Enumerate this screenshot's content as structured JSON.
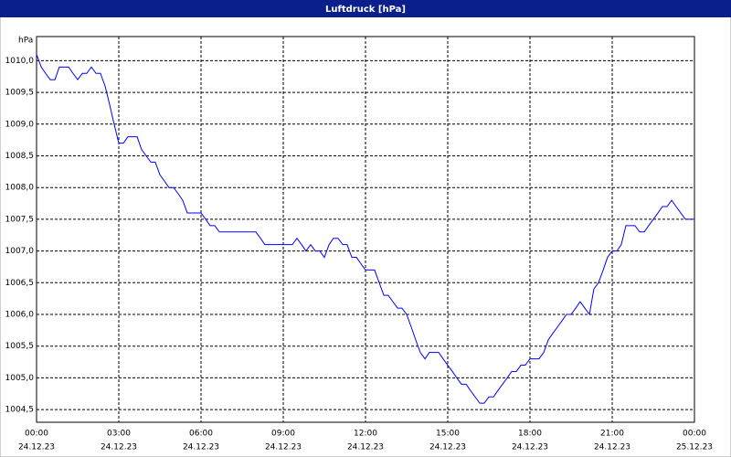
{
  "chart_data": {
    "type": "line",
    "title": "Luftdruck [hPa]",
    "y_label": "hPa",
    "x": [
      0,
      0.17,
      0.33,
      0.5,
      0.67,
      0.83,
      1,
      1.17,
      1.33,
      1.5,
      1.67,
      1.83,
      2,
      2.17,
      2.33,
      2.5,
      2.67,
      2.83,
      3,
      3.17,
      3.33,
      3.5,
      3.67,
      3.83,
      4,
      4.17,
      4.33,
      4.5,
      4.67,
      4.83,
      5,
      5.17,
      5.33,
      5.5,
      5.67,
      6,
      6.17,
      6.33,
      6.5,
      6.67,
      7,
      7.5,
      8,
      8.17,
      8.33,
      9,
      9.33,
      9.5,
      9.67,
      9.83,
      10,
      10.17,
      10.33,
      10.5,
      10.67,
      10.83,
      11,
      11.17,
      11.33,
      11.5,
      11.67,
      11.83,
      12,
      12.33,
      12.5,
      12.67,
      12.83,
      13,
      13.17,
      13.33,
      13.5,
      13.67,
      13.83,
      14,
      14.17,
      14.33,
      14.67,
      14.83,
      15,
      15.17,
      15.33,
      15.5,
      15.67,
      15.83,
      16,
      16.17,
      16.33,
      16.5,
      16.67,
      16.83,
      17,
      17.17,
      17.33,
      17.5,
      17.67,
      17.83,
      18,
      18.33,
      18.5,
      18.67,
      18.83,
      19,
      19.17,
      19.33,
      19.5,
      19.67,
      19.83,
      20,
      20.17,
      20.33,
      20.5,
      20.67,
      20.83,
      21,
      21.17,
      21.33,
      21.5,
      21.67,
      21.83,
      22,
      22.17,
      22.33,
      22.5,
      22.67,
      22.83,
      23,
      23.17,
      23.33,
      23.5,
      23.67,
      24
    ],
    "series": [
      {
        "color": "#0000ff",
        "values": [
          1010.1,
          1009.9,
          1009.8,
          1009.7,
          1009.7,
          1009.9,
          1009.9,
          1009.9,
          1009.8,
          1009.7,
          1009.8,
          1009.8,
          1009.9,
          1009.8,
          1009.8,
          1009.6,
          1009.3,
          1009.0,
          1008.7,
          1008.7,
          1008.8,
          1008.8,
          1008.8,
          1008.6,
          1008.5,
          1008.4,
          1008.4,
          1008.2,
          1008.1,
          1008.0,
          1008.0,
          1007.9,
          1007.8,
          1007.6,
          1007.6,
          1007.6,
          1007.5,
          1007.4,
          1007.4,
          1007.3,
          1007.3,
          1007.3,
          1007.3,
          1007.2,
          1007.1,
          1007.1,
          1007.1,
          1007.2,
          1007.1,
          1007.0,
          1007.1,
          1007.0,
          1007.0,
          1006.9,
          1007.1,
          1007.2,
          1007.2,
          1007.1,
          1007.1,
          1006.9,
          1006.9,
          1006.8,
          1006.7,
          1006.7,
          1006.5,
          1006.3,
          1006.3,
          1006.2,
          1006.1,
          1006.1,
          1006.0,
          1005.8,
          1005.6,
          1005.4,
          1005.3,
          1005.4,
          1005.4,
          1005.3,
          1005.2,
          1005.1,
          1005.0,
          1004.9,
          1004.9,
          1004.8,
          1004.7,
          1004.6,
          1004.6,
          1004.7,
          1004.7,
          1004.8,
          1004.9,
          1005.0,
          1005.1,
          1005.1,
          1005.2,
          1005.2,
          1005.3,
          1005.3,
          1005.4,
          1005.6,
          1005.7,
          1005.8,
          1005.9,
          1006.0,
          1006.0,
          1006.1,
          1006.2,
          1006.1,
          1006.0,
          1006.4,
          1006.5,
          1006.7,
          1006.9,
          1007.0,
          1007.0,
          1007.1,
          1007.4,
          1007.4,
          1007.4,
          1007.3,
          1007.3,
          1007.4,
          1007.5,
          1007.6,
          1007.7,
          1007.7,
          1007.8,
          1007.7,
          1007.6,
          1007.5,
          1007.5
        ]
      }
    ],
    "xlim": [
      0,
      24
    ],
    "xticks": [
      {
        "value": 0,
        "label": "00:00"
      },
      {
        "value": 3,
        "label": "03:00"
      },
      {
        "value": 6,
        "label": "06:00"
      },
      {
        "value": 9,
        "label": "09:00"
      },
      {
        "value": 12,
        "label": "12:00"
      },
      {
        "value": 15,
        "label": "15:00"
      },
      {
        "value": 18,
        "label": "18:00"
      },
      {
        "value": 21,
        "label": "21:00"
      },
      {
        "value": 24,
        "label": "00:00"
      }
    ],
    "xtick_dates": [
      "24.12.23",
      "24.12.23",
      "24.12.23",
      "24.12.23",
      "24.12.23",
      "24.12.23",
      "24.12.23",
      "24.12.23",
      "25.12.23"
    ],
    "ylim": [
      1004.3,
      1010.38
    ],
    "yticks": [
      {
        "value": 1004.5,
        "label": "1004,5"
      },
      {
        "value": 1005,
        "label": "1005,0"
      },
      {
        "value": 1005.5,
        "label": "1005,5"
      },
      {
        "value": 1006,
        "label": "1006,0"
      },
      {
        "value": 1006.5,
        "label": "1006,5"
      },
      {
        "value": 1007,
        "label": "1007,0"
      },
      {
        "value": 1007.5,
        "label": "1007,5"
      },
      {
        "value": 1008,
        "label": "1008,0"
      },
      {
        "value": 1008.5,
        "label": "1008,5"
      },
      {
        "value": 1009,
        "label": "1009,0"
      },
      {
        "value": 1009.5,
        "label": "1009,5"
      },
      {
        "value": 1010,
        "label": "1010,0"
      }
    ],
    "grid": true
  }
}
